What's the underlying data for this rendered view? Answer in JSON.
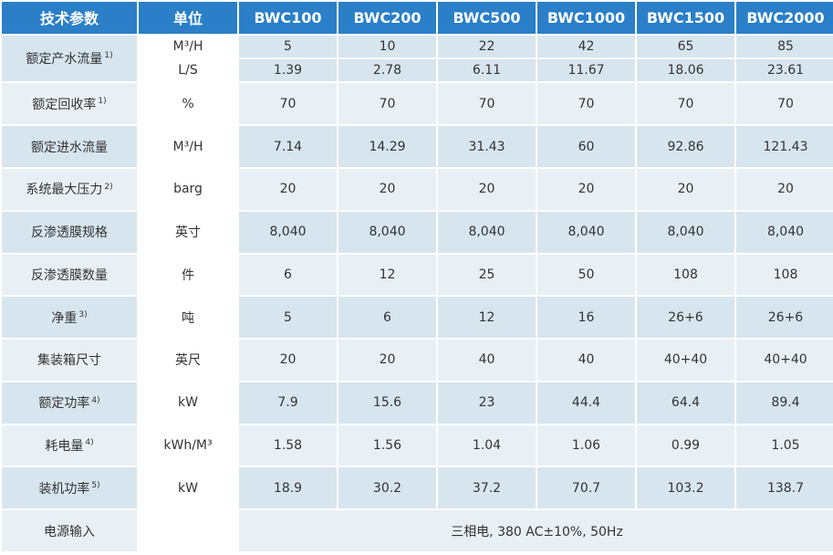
{
  "header": {
    "param": "技术参数",
    "unit": "单位",
    "models": [
      "BWC100",
      "BWC200",
      "BWC500",
      "BWC1000",
      "BWC1500",
      "BWC2000"
    ]
  },
  "rows": {
    "product_flow": {
      "label": "额定产水流量",
      "note": "1)",
      "unit_a": "M³/H",
      "values_a": [
        "5",
        "10",
        "22",
        "42",
        "65",
        "85"
      ],
      "unit_b": "L/S",
      "values_b": [
        "1.39",
        "2.78",
        "6.11",
        "11.67",
        "18.06",
        "23.61"
      ]
    },
    "recovery": {
      "label": "额定回收率",
      "note": "1)",
      "unit": "%",
      "values": [
        "70",
        "70",
        "70",
        "70",
        "70",
        "70"
      ]
    },
    "feed_flow": {
      "label": "额定进水流量",
      "note": "",
      "unit": "M³/H",
      "values": [
        "7.14",
        "14.29",
        "31.43",
        "60",
        "92.86",
        "121.43"
      ]
    },
    "max_pressure": {
      "label": "系统最大压力",
      "note": "2)",
      "unit": "barg",
      "values": [
        "20",
        "20",
        "20",
        "20",
        "20",
        "20"
      ]
    },
    "membrane_spec": {
      "label": "反渗透膜规格",
      "note": "",
      "unit": "英寸",
      "values": [
        "8,040",
        "8,040",
        "8,040",
        "8,040",
        "8,040",
        "8,040"
      ]
    },
    "membrane_count": {
      "label": "反渗透膜数量",
      "note": "",
      "unit": "件",
      "values": [
        "6",
        "12",
        "25",
        "50",
        "108",
        "108"
      ]
    },
    "net_weight": {
      "label": "净重",
      "note": "3)",
      "unit": "吨",
      "values": [
        "5",
        "6",
        "12",
        "16",
        "26+6",
        "26+6"
      ]
    },
    "container": {
      "label": "集装箱尺寸",
      "note": "",
      "unit": "英尺",
      "values": [
        "20",
        "20",
        "40",
        "40",
        "40+40",
        "40+40"
      ]
    },
    "rated_power": {
      "label": "额定功率",
      "note": "4)",
      "unit": "kW",
      "values": [
        "7.9",
        "15.6",
        "23",
        "44.4",
        "64.4",
        "89.4"
      ]
    },
    "energy": {
      "label": "耗电量",
      "note": "4)",
      "unit": "kWh/M³",
      "values": [
        "1.58",
        "1.56",
        "1.04",
        "1.06",
        "0.99",
        "1.05"
      ]
    },
    "installed_power": {
      "label": "装机功率",
      "note": "5)",
      "unit": "kW",
      "values": [
        "18.9",
        "30.2",
        "37.2",
        "70.7",
        "103.2",
        "138.7"
      ]
    },
    "power_supply": {
      "label": "电源输入",
      "note": "",
      "unit": "",
      "value": "三相电, 380 AC±10%, 50Hz"
    }
  }
}
